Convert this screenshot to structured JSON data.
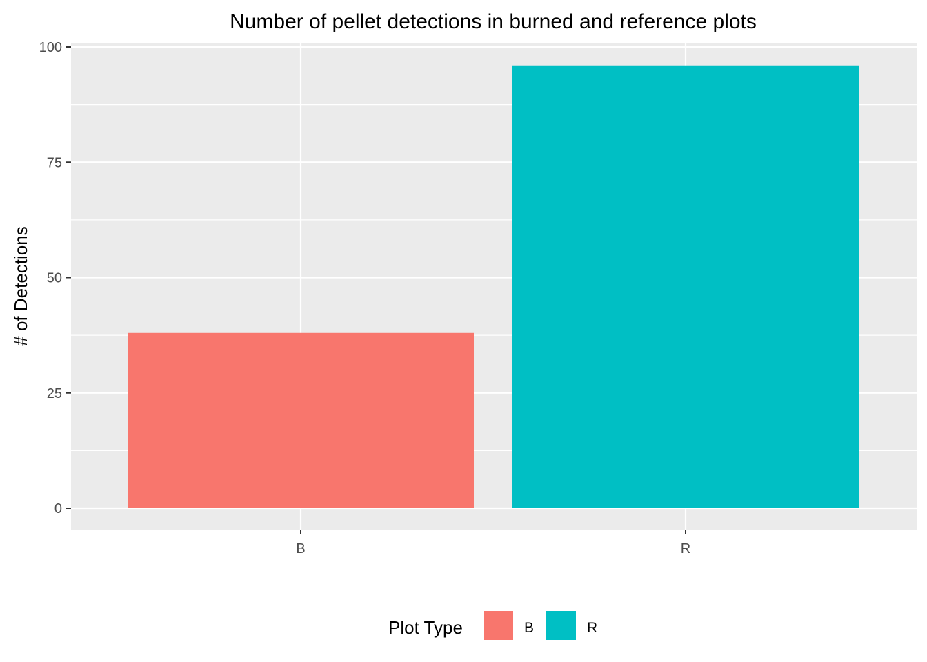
{
  "chart_data": {
    "type": "bar",
    "title": "Number of pellet detections in burned and reference plots",
    "xlabel": "",
    "ylabel": "# of Detections",
    "categories": [
      "B",
      "R"
    ],
    "values": [
      38,
      96
    ],
    "colors": [
      "#F8766D",
      "#00BFC4"
    ],
    "ylim": [
      0,
      100
    ],
    "yticks": [
      "0",
      "25",
      "50",
      "75",
      "100"
    ],
    "grid": true,
    "panel_background": "#EBEBEB",
    "legend": {
      "title": "Plot Type",
      "position": "bottom",
      "entries": [
        "B",
        "R"
      ]
    }
  }
}
